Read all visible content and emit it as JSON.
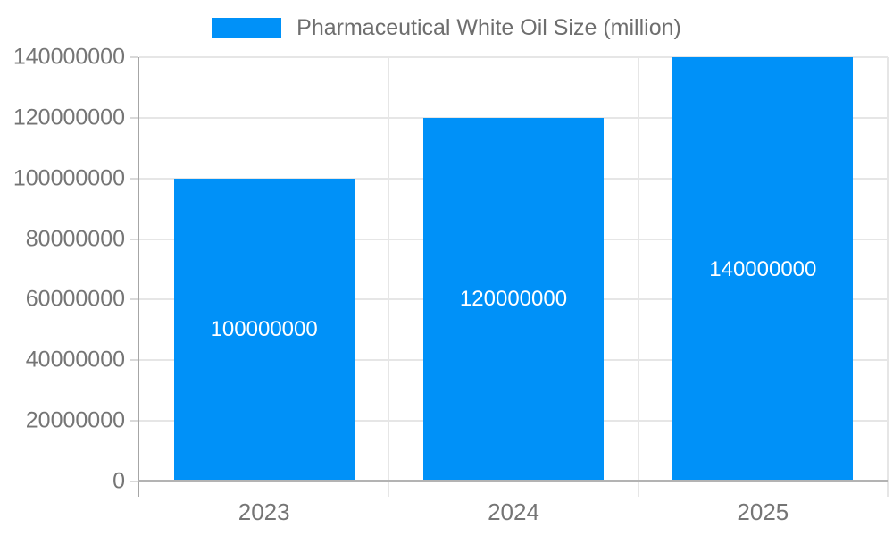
{
  "legend": {
    "label": "Pharmaceutical White Oil Size (million)"
  },
  "colors": {
    "bar": "#0091f8",
    "grid": "#e6e6e6",
    "axis": "#a6a6a6",
    "baseline": "#b3b3b3",
    "tick": "#d9d9d9",
    "axis_text": "#757575",
    "legend_text": "#6e6e6e",
    "value_text": "#ffffff",
    "background": "#ffffff"
  },
  "chart_data": {
    "type": "bar",
    "title": "",
    "xlabel": "",
    "ylabel": "",
    "categories": [
      "2023",
      "2024",
      "2025"
    ],
    "series": [
      {
        "name": "Pharmaceutical White Oil Size (million)",
        "values": [
          100000000,
          120000000,
          140000000
        ]
      }
    ],
    "bar_value_labels": [
      "100000000",
      "120000000",
      "140000000"
    ],
    "ylim": [
      0,
      140000000
    ],
    "yticks": [
      0,
      20000000,
      40000000,
      60000000,
      80000000,
      100000000,
      120000000,
      140000000
    ],
    "grid": "on",
    "legend_position": "top-center"
  }
}
